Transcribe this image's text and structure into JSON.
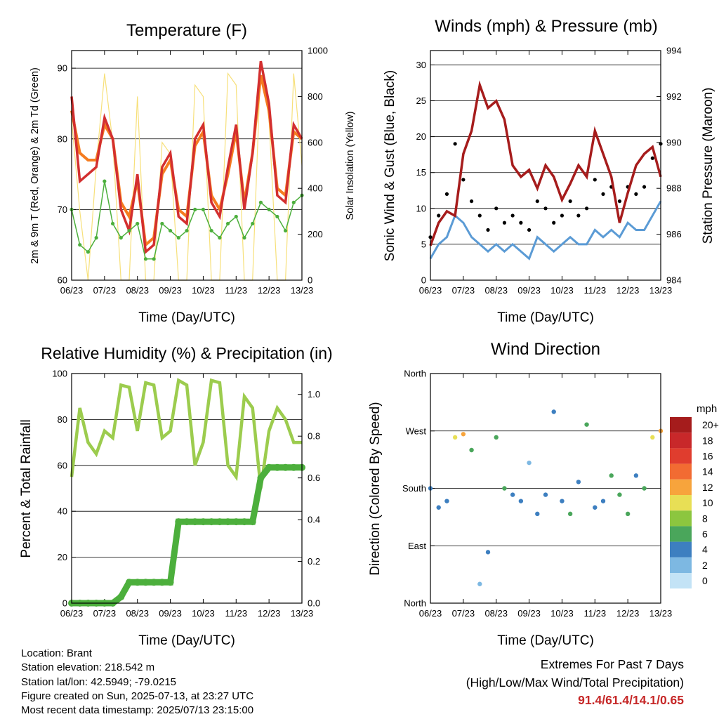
{
  "colors": {
    "temp_2m": "#d32f2f",
    "temp_9m": "#f57c20",
    "dewpoint": "#4caf3c",
    "solar": "#f7e07a",
    "wind": "#5b9bd5",
    "gust": "#000000",
    "pressure": "#a61c1c",
    "rh": "#9ccc4e",
    "rain": "#4caf3c",
    "extremes_value": "#c62828"
  },
  "chart_data": [
    {
      "id": "temperature",
      "type": "line",
      "title": "Temperature (F)",
      "xlabel": "Time (Day/UTC)",
      "ylabel": "2m & 9m T (Red, Orange) & 2m Td (Green)",
      "y2label": "Solar Insolation (Yellow)",
      "x_ticks": [
        "06/23",
        "07/23",
        "08/23",
        "09/23",
        "10/23",
        "11/23",
        "12/23",
        "13/23"
      ],
      "ylim": [
        60,
        92.5
      ],
      "y_ticks": [
        60,
        70,
        80,
        90
      ],
      "y2lim": [
        0,
        1000
      ],
      "y2_ticks": [
        0,
        200,
        400,
        600,
        800,
        1000
      ],
      "grid": "horizontal at left-axis ticks",
      "x": [
        0,
        0.25,
        0.5,
        0.75,
        1,
        1.25,
        1.5,
        1.75,
        2,
        2.25,
        2.5,
        2.75,
        3,
        3.25,
        3.5,
        3.75,
        4,
        4.25,
        4.5,
        4.75,
        5,
        5.25,
        5.5,
        5.75,
        6,
        6.25,
        6.5,
        6.75,
        7
      ],
      "series": [
        {
          "key": "temp_2m",
          "values": [
            86,
            74,
            75,
            76,
            83,
            80,
            70,
            67,
            75,
            64,
            65,
            76,
            78,
            69,
            68,
            80,
            82,
            71,
            69,
            76,
            82,
            70,
            78,
            91,
            85,
            72,
            71,
            82,
            80
          ]
        },
        {
          "key": "temp_9m",
          "values": [
            84,
            78,
            77,
            77,
            82,
            80,
            71,
            69,
            74,
            65,
            66,
            75,
            77,
            70,
            69,
            79,
            81,
            72,
            70,
            75,
            81,
            71,
            78,
            89,
            84,
            73,
            72,
            81,
            80
          ]
        },
        {
          "key": "dewpoint",
          "values": [
            70,
            65,
            64,
            66,
            74,
            68,
            66,
            67,
            68,
            63,
            63,
            68,
            67,
            66,
            67,
            70,
            70,
            67,
            66,
            68,
            69,
            66,
            68,
            71,
            70,
            69,
            67,
            71,
            72
          ]
        },
        {
          "key": "solar",
          "axis": "right",
          "values": [
            700,
            300,
            0,
            500,
            900,
            600,
            0,
            0,
            800,
            0,
            0,
            600,
            550,
            0,
            0,
            850,
            800,
            0,
            0,
            900,
            850,
            0,
            0,
            950,
            700,
            0,
            0,
            900,
            500
          ]
        }
      ]
    },
    {
      "id": "winds",
      "type": "scatter",
      "title": "Winds (mph) & Pressure (mb)",
      "xlabel": "Time (Day/UTC)",
      "ylabel": "Sonic Wind & Gust (Blue, Black)",
      "y2label": "Station Pressure (Maroon)",
      "x_ticks": [
        "06/23",
        "07/23",
        "08/23",
        "09/23",
        "10/23",
        "11/23",
        "12/23",
        "13/23"
      ],
      "ylim": [
        0,
        32
      ],
      "y_ticks": [
        0,
        5,
        10,
        15,
        20,
        25,
        30
      ],
      "y2lim": [
        984,
        994
      ],
      "y2_ticks": [
        984,
        986,
        988,
        990,
        992,
        994
      ],
      "grid": "horizontal at left-axis ticks",
      "x": [
        0,
        0.25,
        0.5,
        0.75,
        1,
        1.25,
        1.5,
        1.75,
        2,
        2.25,
        2.5,
        2.75,
        3,
        3.25,
        3.5,
        3.75,
        4,
        4.25,
        4.5,
        4.75,
        5,
        5.25,
        5.5,
        5.75,
        6,
        6.25,
        6.5,
        6.75,
        7
      ],
      "series": [
        {
          "key": "wind",
          "values": [
            3,
            5,
            6,
            9,
            8,
            6,
            5,
            4,
            5,
            4,
            5,
            4,
            3,
            6,
            5,
            4,
            5,
            6,
            5,
            5,
            7,
            6,
            7,
            6,
            8,
            7,
            7,
            9,
            11
          ]
        },
        {
          "key": "gust",
          "values": [
            6,
            9,
            12,
            19,
            14,
            11,
            9,
            7,
            10,
            8,
            9,
            8,
            7,
            11,
            10,
            8,
            9,
            11,
            9,
            10,
            14,
            12,
            13,
            11,
            13,
            12,
            13,
            17,
            19
          ]
        },
        {
          "key": "pressure",
          "axis": "right",
          "line": true,
          "values": [
            985.5,
            986.5,
            987.0,
            986.8,
            989.5,
            990.5,
            992.5,
            991.5,
            991.8,
            991.0,
            989.0,
            988.5,
            988.8,
            988.0,
            989.0,
            988.5,
            987.5,
            988.2,
            989.0,
            988.5,
            990.5,
            989.5,
            988.5,
            986.5,
            987.8,
            989.0,
            989.5,
            989.8,
            988.5
          ]
        }
      ]
    },
    {
      "id": "humidity",
      "type": "line",
      "title": "Relative Humidity (%) & Precipitation (in)",
      "xlabel": "Time (Day/UTC)",
      "ylabel": "Percent & Total Rainfall",
      "x_ticks": [
        "06/23",
        "07/23",
        "08/23",
        "09/23",
        "10/23",
        "11/23",
        "12/23",
        "13/23"
      ],
      "ylim": [
        0,
        100
      ],
      "y_ticks": [
        0,
        20,
        40,
        60,
        80,
        100
      ],
      "y2lim": [
        0,
        1.1
      ],
      "y2_ticks": [
        "0.0",
        "0.2",
        "0.4",
        "0.6",
        "0.8",
        "1.0"
      ],
      "grid": "horizontal at left-axis ticks",
      "x": [
        0,
        0.25,
        0.5,
        0.75,
        1,
        1.25,
        1.5,
        1.75,
        2,
        2.25,
        2.5,
        2.75,
        3,
        3.25,
        3.5,
        3.75,
        4,
        4.25,
        4.5,
        4.75,
        5,
        5.25,
        5.5,
        5.75,
        6,
        6.25,
        6.5,
        6.75,
        7
      ],
      "series": [
        {
          "key": "rh",
          "values": [
            55,
            85,
            70,
            65,
            75,
            72,
            95,
            94,
            75,
            96,
            95,
            72,
            75,
            97,
            95,
            60,
            70,
            97,
            96,
            60,
            55,
            90,
            85,
            50,
            75,
            85,
            80,
            70,
            70
          ]
        },
        {
          "key": "rain",
          "axis": "right",
          "values": [
            0,
            0,
            0,
            0,
            0,
            0,
            0.03,
            0.1,
            0.1,
            0.1,
            0.1,
            0.1,
            0.1,
            0.39,
            0.39,
            0.39,
            0.39,
            0.39,
            0.39,
            0.39,
            0.39,
            0.39,
            0.39,
            0.6,
            0.65,
            0.65,
            0.65,
            0.65,
            0.65
          ]
        }
      ]
    },
    {
      "id": "direction",
      "type": "scatter",
      "title": "Wind Direction",
      "xlabel": "Time (Day/UTC)",
      "ylabel": "Direction (Colored By Speed)",
      "x_ticks": [
        "06/23",
        "07/23",
        "08/23",
        "09/23",
        "10/23",
        "11/23",
        "12/23",
        "13/23"
      ],
      "ylim": [
        0,
        360
      ],
      "y_ticks": [
        0,
        90,
        180,
        270,
        360
      ],
      "y_tick_labels": [
        "North",
        "East",
        "South",
        "West",
        "North"
      ],
      "grid": "horizontal at direction ticks",
      "colorbar": {
        "title": "mph",
        "labels": [
          "20+",
          "18",
          "16",
          "14",
          "12",
          "10",
          "8",
          "6",
          "4",
          "2",
          "0"
        ],
        "colors": [
          "#a51c1c",
          "#c8282a",
          "#e03d2e",
          "#f26b32",
          "#f7a43c",
          "#e8df55",
          "#8cc63f",
          "#4aa65b",
          "#3d7fc0",
          "#7db8e2",
          "#c3e3f6"
        ]
      },
      "x": [
        0,
        0.25,
        0.5,
        0.75,
        1,
        1.25,
        1.5,
        1.75,
        2,
        2.25,
        2.5,
        2.75,
        3,
        3.25,
        3.5,
        3.75,
        4,
        4.25,
        4.5,
        4.75,
        5,
        5.25,
        5.5,
        5.75,
        6,
        6.25,
        6.5,
        6.75,
        7
      ],
      "series": [
        {
          "name": "Direction",
          "values": [
            180,
            150,
            160,
            260,
            265,
            240,
            30,
            80,
            260,
            180,
            170,
            160,
            220,
            140,
            170,
            300,
            160,
            140,
            190,
            280,
            150,
            160,
            200,
            170,
            140,
            200,
            180,
            260,
            270
          ]
        }
      ],
      "speed": [
        3,
        4,
        4,
        10,
        12,
        6,
        2,
        3,
        6,
        5,
        4,
        3,
        2,
        4,
        3,
        3,
        4,
        5,
        3,
        6,
        4,
        4,
        5,
        5,
        6,
        4,
        5,
        10,
        11
      ]
    }
  ],
  "info": {
    "location": "Location: Brant",
    "elevation": "Station elevation: 218.542 m",
    "latlon": "Station lat/lon: 42.5949; -79.0215",
    "created": "Figure created on Sun, 2025-07-13, at 23:27 UTC",
    "recent": "Most recent data timestamp: 2025/07/13 23:15:00"
  },
  "extremes": {
    "title": "Extremes For Past 7 Days",
    "subtitle": "(High/Low/Max Wind/Total Precipitation)",
    "values": "91.4/61.4/14.1/0.65"
  }
}
